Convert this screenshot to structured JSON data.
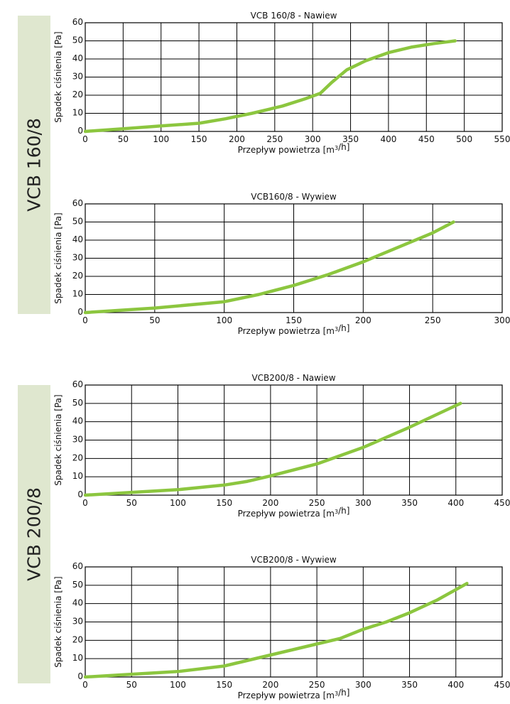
{
  "side_labels": [
    "VCB 160/8",
    "VCB 200/8"
  ],
  "colors": {
    "curve": "#8cc63f",
    "grid": "#000000",
    "band": "#dfe7cf"
  },
  "chart_data": [
    {
      "type": "line",
      "title": "VCB  160/8 - Nawiew",
      "xlabel": "Przepływ powietrza [m³/h]",
      "ylabel": "Spadek ciśnienia [Pa]",
      "xlim": [
        0,
        550
      ],
      "ylim": [
        0,
        60
      ],
      "xticks": [
        0,
        50,
        100,
        150,
        200,
        250,
        300,
        350,
        400,
        450,
        500,
        550
      ],
      "yticks": [
        0,
        10,
        20,
        30,
        40,
        50,
        60
      ],
      "grid": true,
      "series": [
        {
          "x": [
            0,
            50,
            100,
            150,
            185,
            220,
            260,
            290,
            310,
            325,
            345,
            370,
            400,
            430,
            460,
            488
          ],
          "y": [
            0,
            1.5,
            3,
            4.5,
            7,
            10,
            14,
            18,
            21,
            27,
            34,
            39,
            43.5,
            46.5,
            48.5,
            50
          ]
        }
      ]
    },
    {
      "type": "line",
      "title": "VCB160/8 - Wywiew",
      "xlabel": "Przepływ powietrza [m³/h]",
      "ylabel": "Spadek ciśnienia [Pa]",
      "xlim": [
        0,
        300
      ],
      "ylim": [
        0,
        60
      ],
      "xticks": [
        0,
        50,
        100,
        150,
        200,
        250,
        300
      ],
      "yticks": [
        0,
        10,
        20,
        30,
        40,
        50,
        60
      ],
      "grid": true,
      "series": [
        {
          "x": [
            0,
            50,
            100,
            125,
            150,
            175,
            200,
            225,
            250,
            265
          ],
          "y": [
            0,
            2.5,
            6,
            10,
            15,
            21,
            28,
            36,
            44,
            50
          ]
        }
      ]
    },
    {
      "type": "line",
      "title": "VCB200/8 - Nawiew",
      "xlabel": "Przepływ powietrza [m³/h]",
      "ylabel": "Spadek ciśnienia [Pa]",
      "xlim": [
        0,
        450
      ],
      "ylim": [
        0,
        60
      ],
      "xticks": [
        0,
        50,
        100,
        150,
        200,
        250,
        300,
        350,
        400,
        450
      ],
      "yticks": [
        0,
        10,
        20,
        30,
        40,
        50,
        60
      ],
      "grid": true,
      "series": [
        {
          "x": [
            0,
            50,
            100,
            150,
            175,
            200,
            250,
            300,
            350,
            405
          ],
          "y": [
            0,
            1.5,
            3,
            5.5,
            7.5,
            10.5,
            17,
            26,
            37,
            50
          ]
        }
      ]
    },
    {
      "type": "line",
      "title": "VCB200/8 - Wywiew",
      "xlabel": "Przepływ powietrza [m³/h]",
      "ylabel": "Spadek ciśnienia [Pa]",
      "xlim": [
        0,
        450
      ],
      "ylim": [
        0,
        60
      ],
      "xticks": [
        0,
        50,
        100,
        150,
        200,
        250,
        300,
        350,
        400,
        450
      ],
      "yticks": [
        0,
        10,
        20,
        30,
        40,
        50,
        60
      ],
      "grid": true,
      "series": [
        {
          "x": [
            0,
            50,
            100,
            150,
            200,
            250,
            275,
            300,
            325,
            350,
            380,
            412
          ],
          "y": [
            0,
            1.5,
            3,
            6,
            12,
            18,
            21,
            26,
            30,
            35,
            42,
            51
          ]
        }
      ]
    }
  ]
}
